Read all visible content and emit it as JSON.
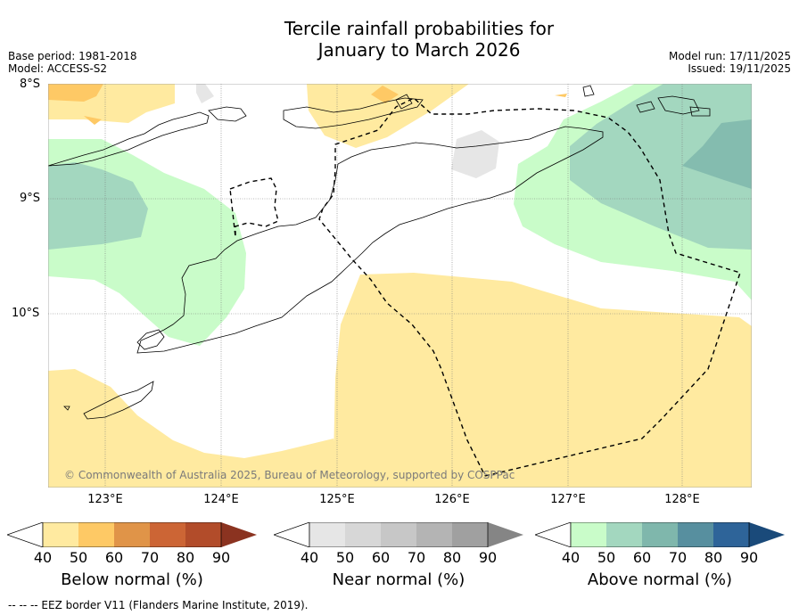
{
  "title_line1": "Tercile rainfall probabilities for",
  "title_line2": "January to March 2026",
  "base_period": "Base period: 1981-2018",
  "model": "Model: ACCESS-S2",
  "model_run": "Model run: 17/11/2025",
  "issued": "Issued: 19/11/2025",
  "copyright": "© Commonwealth of Australia 2025, Bureau of Meteorology, supported by COSPPac",
  "lat_labels": [
    "8°S",
    "9°S",
    "10°S"
  ],
  "lon_labels": [
    "123°E",
    "124°E",
    "125°E",
    "126°E",
    "127°E",
    "128°E"
  ],
  "colorbars": [
    {
      "label": "Below normal (%)",
      "ticks": [
        "40",
        "50",
        "60",
        "70",
        "80",
        "90"
      ],
      "colors": [
        "#ffffff",
        "#ffeaa0",
        "#fec965",
        "#e09448",
        "#cc6535",
        "#b24c2a",
        "#8b3320"
      ]
    },
    {
      "label": "Near normal (%)",
      "ticks": [
        "40",
        "50",
        "60",
        "70",
        "80",
        "90"
      ],
      "colors": [
        "#ffffff",
        "#e6e6e6",
        "#d7d7d7",
        "#c7c7c7",
        "#b4b4b4",
        "#a0a0a0",
        "#858585"
      ]
    },
    {
      "label": "Above normal (%)",
      "ticks": [
        "40",
        "50",
        "60",
        "70",
        "80",
        "90"
      ],
      "colors": [
        "#ffffff",
        "#c9fcc9",
        "#a3d7bf",
        "#7fb7ac",
        "#578f9f",
        "#2e6499",
        "#1a4a7a"
      ]
    }
  ],
  "footer": "--  --  -- EEZ border V11 (Flanders Marine Institute, 2019)."
}
